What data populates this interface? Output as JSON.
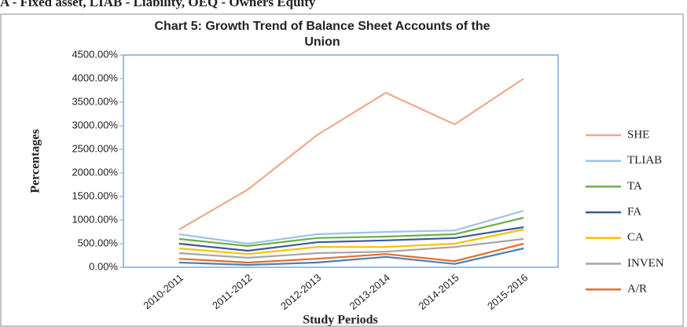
{
  "header": "A - Fixed asset, LIAB - Liability, OEQ - Owners Equity",
  "chart_data": {
    "type": "line",
    "title": "Chart 5: Growth Trend of Balance Sheet Accounts of the",
    "title_line2": "Union",
    "y_label": "Percentages",
    "x_label": "Study Periods",
    "categories": [
      "2010-2011",
      "2011-2012",
      "2012-2013",
      "2013-2014",
      "2014-2015",
      "2015-2016"
    ],
    "ylim": [
      0,
      4500
    ],
    "yticks": [
      {
        "value": 0,
        "label": "0.00%"
      },
      {
        "value": 500,
        "label": "500.00%"
      },
      {
        "value": 1000,
        "label": "1000.00%"
      },
      {
        "value": 1500,
        "label": "1500.00%"
      },
      {
        "value": 2000,
        "label": "2000.00%"
      },
      {
        "value": 2500,
        "label": "2500.00%"
      },
      {
        "value": 3000,
        "label": "3000.00%"
      },
      {
        "value": 3500,
        "label": "3500.00%"
      },
      {
        "value": 4000,
        "label": "4000.00%"
      },
      {
        "value": 4500,
        "label": "4500.00%"
      }
    ],
    "legend": "right",
    "series": [
      {
        "name": "SHE",
        "color": "#f2a98a",
        "values": [
          800,
          1650,
          2800,
          3700,
          3030,
          4000
        ]
      },
      {
        "name": "TLIAB",
        "color": "#9dc3e6",
        "values": [
          700,
          500,
          700,
          750,
          780,
          1200
        ]
      },
      {
        "name": "TA",
        "color": "#70ad47",
        "values": [
          600,
          450,
          620,
          650,
          700,
          1050
        ]
      },
      {
        "name": "FA",
        "color": "#3a5a9c",
        "values": [
          500,
          350,
          530,
          570,
          620,
          850
        ]
      },
      {
        "name": "CA",
        "color": "#ffc000",
        "values": [
          400,
          280,
          430,
          430,
          500,
          800
        ]
      },
      {
        "name": "INVEN",
        "color": "#a5a5a5",
        "values": [
          300,
          200,
          300,
          330,
          430,
          600
        ]
      },
      {
        "name": "A/R",
        "color": "#e0702a",
        "values": [
          180,
          100,
          180,
          280,
          130,
          500
        ]
      },
      {
        "color": "#4a7ebb",
        "values": [
          100,
          50,
          100,
          220,
          70,
          400
        ]
      }
    ]
  }
}
